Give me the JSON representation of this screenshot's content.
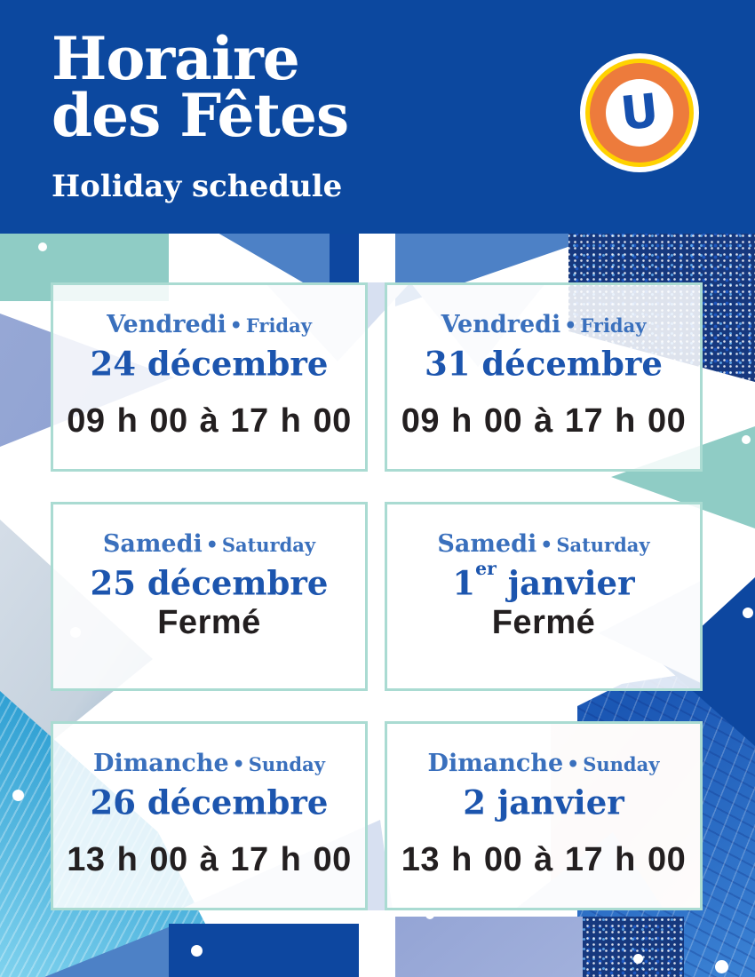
{
  "bullet": "•",
  "header": {
    "title_line1": "Horaire",
    "title_line2": "des Fêtes",
    "subtitle": "Holiday schedule"
  },
  "logo": {
    "letter": "U"
  },
  "colors": {
    "header-bg": "#0c489f",
    "day": "#3a70bd",
    "date": "#1c55ae",
    "hours": "#231f20",
    "card-border": "#aadbd2",
    "teal": "#8fccc5",
    "mid-blue": "#4d81c6",
    "royal": "#0d47a0",
    "pale": "#d7e0f1",
    "logo-orange": "#ed7b3c",
    "logo-yellow": "#ffd200"
  },
  "cards": [
    {
      "day_fr": "Vendredi",
      "day_en": "Friday",
      "date_pre": "24 décembre",
      "date_sup": "",
      "date_post": "",
      "hours": "09 h 00 à 17 h 00"
    },
    {
      "day_fr": "Vendredi",
      "day_en": "Friday",
      "date_pre": "31 décembre",
      "date_sup": "",
      "date_post": "",
      "hours": "09 h 00 à 17 h 00"
    },
    {
      "day_fr": "Samedi",
      "day_en": "Saturday",
      "date_pre": "25 décembre",
      "date_sup": "",
      "date_post": "",
      "hours": "Fermé"
    },
    {
      "day_fr": "Samedi",
      "day_en": "Saturday",
      "date_pre": "1",
      "date_sup": "er",
      "date_post": " janvier",
      "hours": "Fermé"
    },
    {
      "day_fr": "Dimanche",
      "day_en": "Sunday",
      "date_pre": "26 décembre",
      "date_sup": "",
      "date_post": "",
      "hours": "13 h 00 à 17 h 00"
    },
    {
      "day_fr": "Dimanche",
      "day_en": "Sunday",
      "date_pre": "2 janvier",
      "date_sup": "",
      "date_post": "",
      "hours": "13 h 00 à 17 h 00"
    }
  ]
}
